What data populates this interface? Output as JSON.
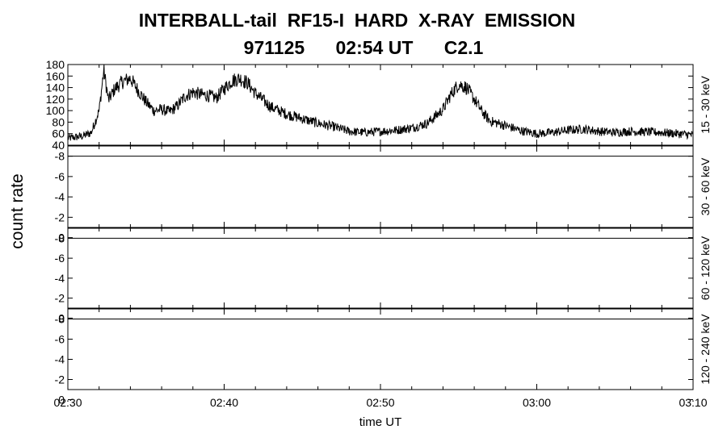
{
  "title_line1": "INTERBALL-tail  RF15-I  HARD  X-RAY  EMISSION",
  "title_line2": {
    "date": "971125",
    "time": "02:54 UT",
    "class": "C2.1"
  },
  "chart_data": {
    "type": "line",
    "xlabel": "time UT",
    "ylabel": "count rate",
    "x_range": [
      "02:30",
      "03:10"
    ],
    "x_ticks": [
      "02:30",
      "02:40",
      "02:50",
      "03:00",
      "03:10"
    ],
    "panels": [
      {
        "name": "15 - 30 keV",
        "ylim": [
          40,
          180
        ],
        "yticks": [
          40,
          60,
          80,
          100,
          120,
          140,
          160,
          180
        ],
        "series": {
          "x_minutes": [
            0,
            1,
            1.5,
            2,
            2.3,
            2.6,
            3,
            3.5,
            4,
            4.5,
            5,
            5.5,
            6,
            6.5,
            7,
            7.5,
            8,
            8.5,
            9,
            9.5,
            10,
            10.5,
            11,
            11.5,
            12,
            12.5,
            13,
            14,
            15,
            16,
            17,
            18,
            19,
            20,
            21,
            22,
            23,
            24,
            24.5,
            25,
            25.5,
            26,
            26.5,
            27,
            28,
            29,
            30,
            31,
            32,
            33,
            34,
            35,
            36,
            37,
            38,
            39,
            40
          ],
          "values": [
            52,
            56,
            62,
            100,
            170,
            118,
            138,
            150,
            156,
            135,
            115,
            100,
            102,
            98,
            108,
            125,
            132,
            128,
            126,
            122,
            138,
            152,
            156,
            148,
            130,
            118,
            106,
            94,
            86,
            78,
            72,
            64,
            62,
            64,
            66,
            70,
            78,
            102,
            128,
            146,
            140,
            120,
            98,
            82,
            74,
            65,
            60,
            62,
            66,
            68,
            64,
            62,
            64,
            63,
            62,
            60,
            58
          ]
        }
      },
      {
        "name": "30 - 60 keV",
        "ylim": [
          -1,
          -9
        ],
        "yticks": [
          0,
          -2,
          -4,
          -6,
          -8
        ],
        "series": {
          "x_minutes": [
            0,
            40
          ],
          "values": [
            -8,
            -8
          ]
        }
      },
      {
        "name": "60 - 120 keV",
        "ylim": [
          -1,
          -9
        ],
        "yticks": [
          0,
          -2,
          -4,
          -6,
          -8
        ],
        "series": {
          "x_minutes": [
            0,
            40
          ],
          "values": [
            -8,
            -8
          ]
        }
      },
      {
        "name": "120 - 240 keV",
        "ylim": [
          -1,
          -9
        ],
        "yticks": [
          0,
          -2,
          -4,
          -6,
          -8
        ],
        "series": {
          "x_minutes": [
            0,
            40
          ],
          "values": [
            -8,
            -8
          ]
        }
      }
    ]
  }
}
